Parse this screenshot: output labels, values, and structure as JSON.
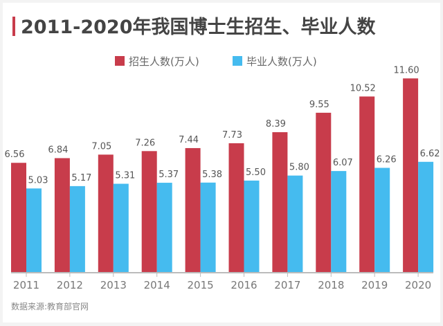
{
  "chart_data": {
    "type": "bar",
    "title": "2011-2020年我国博士生招生、毕业人数",
    "categories": [
      "2011",
      "2012",
      "2013",
      "2014",
      "2015",
      "2016",
      "2017",
      "2018",
      "2019",
      "2020"
    ],
    "series": [
      {
        "name": "招生人数(万人)",
        "color": "#c83c4b",
        "values": [
          6.56,
          6.84,
          7.05,
          7.26,
          7.44,
          7.73,
          8.39,
          9.55,
          10.52,
          11.6
        ]
      },
      {
        "name": "毕业人数(万人)",
        "color": "#45bbef",
        "values": [
          5.03,
          5.17,
          5.31,
          5.37,
          5.38,
          5.5,
          5.8,
          6.07,
          6.26,
          6.62
        ]
      }
    ],
    "ylim": [
      0,
      12
    ],
    "legend": "top-center",
    "grid": false,
    "source": "数据来源:教育部官网",
    "accent_color": "#c83c4b"
  }
}
